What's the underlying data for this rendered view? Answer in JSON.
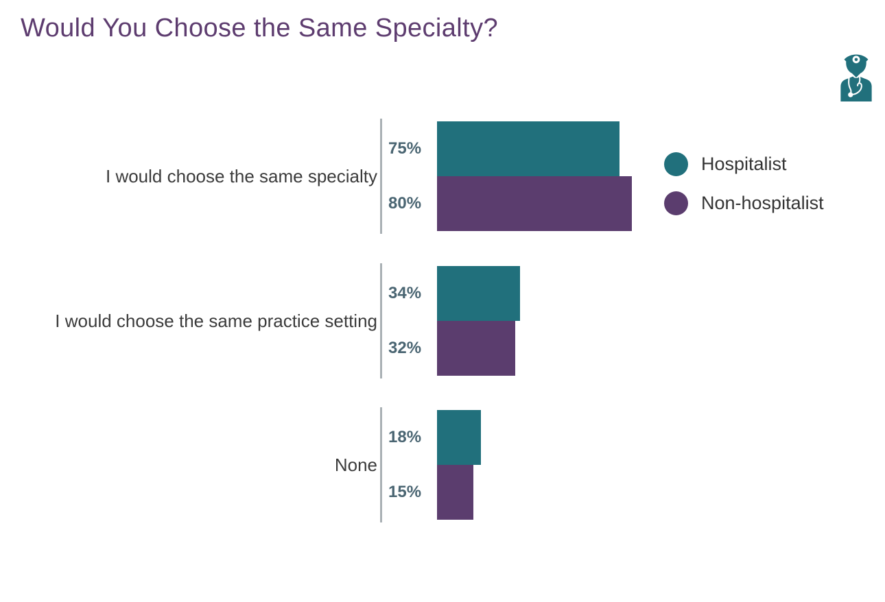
{
  "title": "Would You Choose the Same Specialty?",
  "chart_data": {
    "type": "bar",
    "orientation": "horizontal",
    "title": "Would You Choose the Same Specialty?",
    "categories": [
      "I would choose the same specialty",
      "I would choose the same practice setting",
      "None"
    ],
    "series": [
      {
        "name": "Hospitalist",
        "color": "#21707c",
        "values": [
          75,
          34,
          18
        ]
      },
      {
        "name": "Non-hospitalist",
        "color": "#5b3d6e",
        "values": [
          80,
          32,
          15
        ]
      }
    ],
    "value_suffix": "%",
    "value_labels": [
      [
        "75%",
        "80%"
      ],
      [
        "34%",
        "32%"
      ],
      [
        "18%",
        "15%"
      ]
    ],
    "xlim": [
      0,
      100
    ],
    "grid": false,
    "legend_position": "right"
  },
  "legend": {
    "items": [
      {
        "label": "Hospitalist",
        "color": "#21707c"
      },
      {
        "label": "Non-hospitalist",
        "color": "#5b3d6e"
      }
    ]
  },
  "icons": {
    "header_icon": "doctor-icon"
  },
  "colors": {
    "title": "#5d3c6f",
    "category_label": "#3b3b3b",
    "value_label": "#4a6572",
    "axis_line": "#a9b0b4",
    "hospitalist_teal": "#21707c",
    "non_hospitalist_purple": "#5b3d6e",
    "icon_teal": "#21707c",
    "background": "#ffffff"
  }
}
